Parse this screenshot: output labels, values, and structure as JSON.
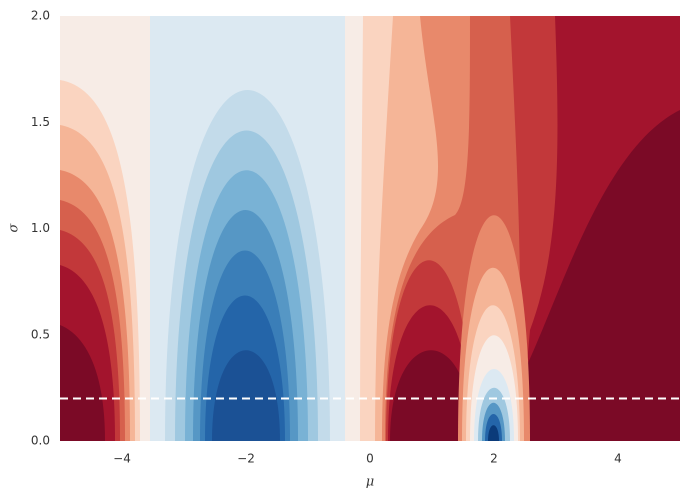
{
  "chart_data": {
    "type": "contourf",
    "xlabel": "μ",
    "ylabel": "σ",
    "xlim": [
      -5,
      5
    ],
    "ylim": [
      0,
      2
    ],
    "xticks": [
      {
        "value": -4,
        "label": "−4"
      },
      {
        "value": -2,
        "label": "−2"
      },
      0,
      2,
      4
    ],
    "yticks": [
      {
        "value": 0,
        "label": "0.0"
      },
      0.5,
      {
        "value": 1,
        "label": "1.0"
      },
      1.5,
      {
        "value": 2,
        "label": "2.0"
      }
    ],
    "hlines": [
      0.2
    ],
    "hline_color": "#ffffff"
  }
}
